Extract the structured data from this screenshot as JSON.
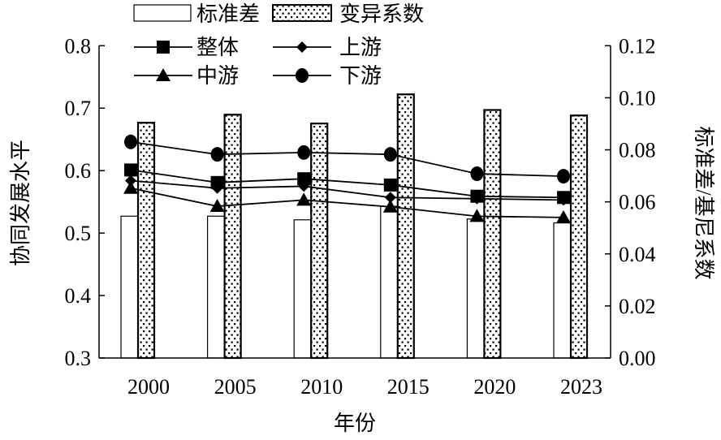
{
  "chart_data": {
    "type": "bar+line",
    "categories": [
      "2000",
      "2005",
      "2010",
      "2015",
      "2020",
      "2023"
    ],
    "xlabel": "年份",
    "ylabel_left": "协同发展水平",
    "ylabel_right": "标准差/基尼系数",
    "ylim_left": [
      0.3,
      0.8
    ],
    "yticks_left": [
      "0.3",
      "0.4",
      "0.5",
      "0.6",
      "0.7",
      "0.8"
    ],
    "ylim_right": [
      0.0,
      0.12
    ],
    "yticks_right": [
      "0.00",
      "0.02",
      "0.04",
      "0.06",
      "0.08",
      "0.10",
      "0.12"
    ],
    "bars": [
      {
        "name": "标准差",
        "axis": "right",
        "style": "white",
        "values": [
          0.0545,
          0.0545,
          0.0531,
          0.0583,
          0.0534,
          0.0519
        ]
      },
      {
        "name": "变异系数",
        "axis": "right",
        "style": "dotted",
        "values": [
          0.0904,
          0.0935,
          0.0901,
          0.1013,
          0.0953,
          0.0932
        ]
      }
    ],
    "series": [
      {
        "name": "整体",
        "marker": "square",
        "axis": "left",
        "values": [
          0.601,
          0.581,
          0.587,
          0.577,
          0.559,
          0.557
        ]
      },
      {
        "name": "上游",
        "marker": "diamond",
        "axis": "left",
        "values": [
          0.584,
          0.572,
          0.575,
          0.557,
          0.555,
          0.553
        ]
      },
      {
        "name": "中游",
        "marker": "triangle",
        "axis": "left",
        "values": [
          0.572,
          0.543,
          0.553,
          0.542,
          0.527,
          0.525
        ]
      },
      {
        "name": "下游",
        "marker": "circle",
        "axis": "left",
        "values": [
          0.646,
          0.626,
          0.629,
          0.626,
          0.595,
          0.591
        ]
      }
    ],
    "legend_position": "top"
  }
}
